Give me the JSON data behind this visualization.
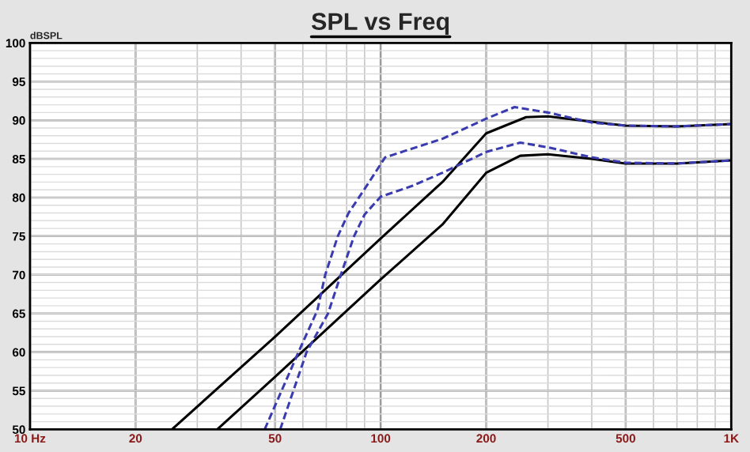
{
  "chart_data": {
    "type": "line",
    "title": "SPL vs Freq",
    "ylabel": "dBSPL",
    "log": "x",
    "grid": true,
    "legend": false,
    "marker": "none",
    "xlim": [
      10,
      1000
    ],
    "xticks": [
      {
        "value": 10,
        "label": "10 Hz"
      },
      20,
      50,
      100,
      200,
      500,
      {
        "value": 1000,
        "label": "1K"
      }
    ],
    "ylim": [
      50,
      100
    ],
    "yticks": [
      50,
      55,
      60,
      65,
      70,
      75,
      80,
      85,
      90,
      95,
      100
    ],
    "series": [
      {
        "color": "#000000",
        "line_style": "solid",
        "x": [
          25.4,
          50,
          100,
          150,
          200,
          260,
          300,
          400,
          500,
          700,
          1000
        ],
        "values": [
          50,
          62,
          74.7,
          82,
          88.3,
          90.4,
          90.5,
          89.8,
          89.3,
          89.2,
          89.5
        ]
      },
      {
        "color": "#000000",
        "line_style": "solid",
        "x": [
          34.2,
          50,
          100,
          150,
          200,
          250,
          300,
          400,
          500,
          700,
          1000
        ],
        "values": [
          50,
          56.8,
          69.4,
          76.5,
          83.2,
          85.4,
          85.6,
          85,
          84.4,
          84.4,
          84.8
        ]
      },
      {
        "color": "#3b3bb0",
        "line_style": "dashed",
        "x": [
          46.7,
          58.3,
          66,
          69.5,
          75.5,
          81,
          90,
          103,
          150,
          200,
          241,
          300,
          400,
          500,
          700,
          1000
        ],
        "values": [
          50,
          60,
          65.4,
          70,
          75,
          78,
          81.1,
          85.2,
          87.6,
          90.2,
          91.7,
          91,
          89.7,
          89.3,
          89.2,
          89.5
        ]
      },
      {
        "color": "#3b3bb0",
        "line_style": "dashed",
        "x": [
          51.7,
          61.5,
          70.8,
          77,
          84,
          90,
          100,
          123,
          150,
          200,
          250,
          300,
          400,
          500,
          700,
          1000
        ],
        "values": [
          50,
          60,
          65,
          70,
          75,
          77.8,
          80.1,
          81.5,
          83.2,
          85.9,
          87.1,
          86.5,
          85.2,
          84.5,
          84.4,
          84.8
        ]
      }
    ]
  }
}
